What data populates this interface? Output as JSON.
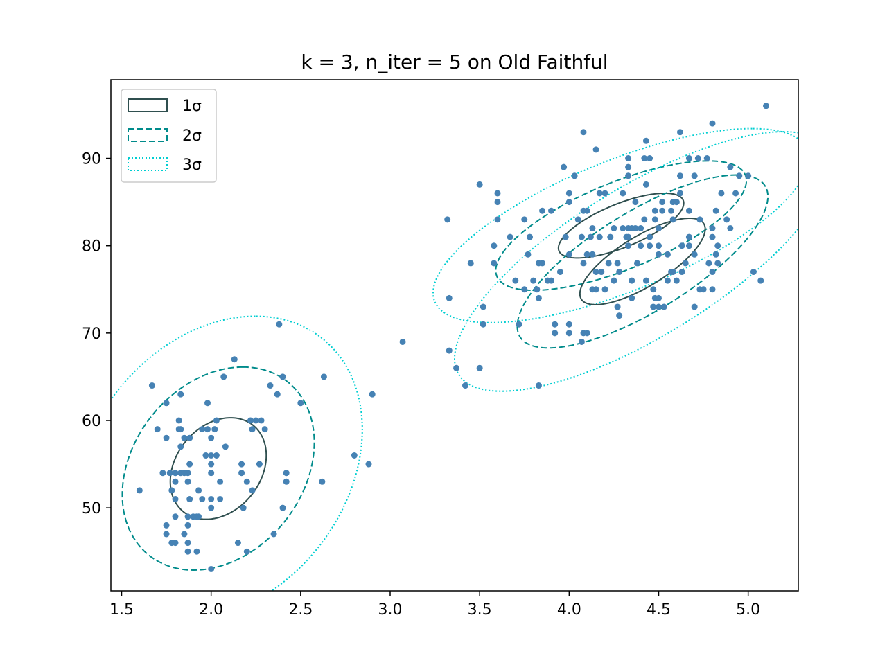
{
  "chart_data": {
    "type": "scatter",
    "title": "k = 3, n_iter = 5 on Old Faithful",
    "xlabel": "",
    "ylabel": "",
    "xlim": [
      1.44,
      5.28
    ],
    "ylim": [
      40.5,
      99
    ],
    "grid": false,
    "legend_position": "top-left",
    "x_ticks": [
      "1.5",
      "2.0",
      "2.5",
      "3.0",
      "3.5",
      "4.0",
      "4.5",
      "5.0"
    ],
    "y_ticks": [
      "50",
      "60",
      "70",
      "80",
      "90"
    ],
    "legend": [
      {
        "label": "1σ",
        "style": "solid",
        "color": "#2f4f4f"
      },
      {
        "label": "2σ",
        "style": "dashed",
        "color": "#008b8b"
      },
      {
        "label": "3σ",
        "style": "dotted",
        "color": "#00ced1"
      }
    ],
    "colors": {
      "points": "#4682b4",
      "sigma1": "#2f4f4f",
      "sigma2": "#008b8b",
      "sigma3": "#00ced1"
    },
    "components": [
      {
        "name": "",
        "mean": [
          2.04,
          54.5
        ],
        "cov": [
          [
            0.0719,
            0.4
          ],
          [
            0.4,
            33.76
          ]
        ]
      },
      {
        "name": "",
        "mean": [
          4.29,
          82.3
        ],
        "cov": [
          [
            0.1225,
            0.9
          ],
          [
            0.9,
            13.7
          ]
        ]
      },
      {
        "name": "",
        "mean": [
          4.41,
          78.2
        ],
        "cov": [
          [
            0.1225,
            1.3
          ],
          [
            1.3,
            24.5
          ]
        ]
      }
    ],
    "points": [
      [
        1.6,
        52
      ],
      [
        1.67,
        64
      ],
      [
        1.7,
        59
      ],
      [
        1.73,
        54
      ],
      [
        1.75,
        62
      ],
      [
        1.75,
        58
      ],
      [
        1.75,
        47
      ],
      [
        1.75,
        48
      ],
      [
        1.77,
        54
      ],
      [
        1.78,
        46
      ],
      [
        1.78,
        52
      ],
      [
        1.8,
        54
      ],
      [
        1.8,
        51
      ],
      [
        1.8,
        49
      ],
      [
        1.8,
        46
      ],
      [
        1.8,
        53
      ],
      [
        1.82,
        60
      ],
      [
        1.82,
        59
      ],
      [
        1.83,
        54
      ],
      [
        1.83,
        57
      ],
      [
        1.83,
        63
      ],
      [
        1.83,
        59
      ],
      [
        1.85,
        54
      ],
      [
        1.85,
        47
      ],
      [
        1.85,
        58
      ],
      [
        1.87,
        53
      ],
      [
        1.87,
        54
      ],
      [
        1.87,
        49
      ],
      [
        1.87,
        48
      ],
      [
        1.87,
        46
      ],
      [
        1.87,
        45
      ],
      [
        1.88,
        58
      ],
      [
        1.88,
        55
      ],
      [
        1.88,
        51
      ],
      [
        1.9,
        49
      ],
      [
        1.92,
        49
      ],
      [
        1.92,
        45
      ],
      [
        1.93,
        49
      ],
      [
        1.93,
        52
      ],
      [
        1.95,
        51
      ],
      [
        1.95,
        59
      ],
      [
        1.97,
        56
      ],
      [
        1.98,
        62
      ],
      [
        1.98,
        59
      ],
      [
        2.0,
        56
      ],
      [
        2.0,
        54
      ],
      [
        2.0,
        55
      ],
      [
        2.0,
        50
      ],
      [
        2.0,
        43
      ],
      [
        2.0,
        58
      ],
      [
        2.0,
        51
      ],
      [
        2.02,
        59
      ],
      [
        2.03,
        56
      ],
      [
        2.03,
        60
      ],
      [
        2.05,
        53
      ],
      [
        2.05,
        51
      ],
      [
        2.07,
        65
      ],
      [
        2.08,
        57
      ],
      [
        2.13,
        67
      ],
      [
        2.15,
        46
      ],
      [
        2.17,
        55
      ],
      [
        2.17,
        54
      ],
      [
        2.18,
        50
      ],
      [
        2.2,
        53
      ],
      [
        2.2,
        45
      ],
      [
        2.22,
        60
      ],
      [
        2.23,
        52
      ],
      [
        2.23,
        59
      ],
      [
        2.25,
        60
      ],
      [
        2.27,
        55
      ],
      [
        2.28,
        60
      ],
      [
        2.3,
        59
      ],
      [
        2.33,
        64
      ],
      [
        2.35,
        47
      ],
      [
        2.37,
        63
      ],
      [
        2.38,
        71
      ],
      [
        2.4,
        65
      ],
      [
        2.4,
        50
      ],
      [
        2.42,
        54
      ],
      [
        2.42,
        53
      ],
      [
        2.5,
        62
      ],
      [
        2.62,
        53
      ],
      [
        2.63,
        65
      ],
      [
        2.8,
        56
      ],
      [
        2.88,
        55
      ],
      [
        2.9,
        63
      ],
      [
        3.07,
        69
      ],
      [
        3.32,
        83
      ],
      [
        3.33,
        74
      ],
      [
        3.33,
        68
      ],
      [
        3.37,
        66
      ],
      [
        3.42,
        64
      ],
      [
        3.45,
        78
      ],
      [
        3.5,
        87
      ],
      [
        3.5,
        66
      ],
      [
        3.52,
        73
      ],
      [
        3.52,
        71
      ],
      [
        3.58,
        80
      ],
      [
        3.58,
        78
      ],
      [
        3.6,
        85
      ],
      [
        3.6,
        83
      ],
      [
        3.6,
        86
      ],
      [
        3.67,
        81
      ],
      [
        3.7,
        76
      ],
      [
        3.72,
        71
      ],
      [
        3.75,
        75
      ],
      [
        3.75,
        83
      ],
      [
        3.77,
        79
      ],
      [
        3.78,
        81
      ],
      [
        3.8,
        76
      ],
      [
        3.82,
        75
      ],
      [
        3.83,
        74
      ],
      [
        3.83,
        64
      ],
      [
        3.83,
        78
      ],
      [
        3.85,
        84
      ],
      [
        3.85,
        78
      ],
      [
        3.88,
        76
      ],
      [
        3.9,
        84
      ],
      [
        3.9,
        76
      ],
      [
        3.92,
        71
      ],
      [
        3.92,
        70
      ],
      [
        3.95,
        77
      ],
      [
        3.97,
        89
      ],
      [
        3.98,
        81
      ],
      [
        4.0,
        85
      ],
      [
        4.0,
        86
      ],
      [
        4.0,
        71
      ],
      [
        4.0,
        70
      ],
      [
        4.0,
        79
      ],
      [
        4.03,
        88
      ],
      [
        4.05,
        83
      ],
      [
        4.07,
        69
      ],
      [
        4.07,
        81
      ],
      [
        4.08,
        93
      ],
      [
        4.08,
        70
      ],
      [
        4.08,
        84
      ],
      [
        4.08,
        78
      ],
      [
        4.1,
        79
      ],
      [
        4.1,
        84
      ],
      [
        4.1,
        70
      ],
      [
        4.12,
        81
      ],
      [
        4.13,
        79
      ],
      [
        4.13,
        82
      ],
      [
        4.13,
        75
      ],
      [
        4.15,
        91
      ],
      [
        4.15,
        77
      ],
      [
        4.15,
        75
      ],
      [
        4.17,
        81
      ],
      [
        4.17,
        86
      ],
      [
        4.18,
        77
      ],
      [
        4.2,
        75
      ],
      [
        4.2,
        86
      ],
      [
        4.22,
        78
      ],
      [
        4.23,
        81
      ],
      [
        4.25,
        82
      ],
      [
        4.25,
        76
      ],
      [
        4.27,
        73
      ],
      [
        4.27,
        78
      ],
      [
        4.28,
        72
      ],
      [
        4.28,
        77
      ],
      [
        4.3,
        82
      ],
      [
        4.3,
        86
      ],
      [
        4.32,
        81
      ],
      [
        4.33,
        81
      ],
      [
        4.33,
        80
      ],
      [
        4.33,
        88
      ],
      [
        4.33,
        90
      ],
      [
        4.33,
        89
      ],
      [
        4.33,
        82
      ],
      [
        4.35,
        82
      ],
      [
        4.35,
        76
      ],
      [
        4.35,
        74
      ],
      [
        4.37,
        85
      ],
      [
        4.37,
        82
      ],
      [
        4.38,
        78
      ],
      [
        4.4,
        82
      ],
      [
        4.4,
        80
      ],
      [
        4.42,
        83
      ],
      [
        4.42,
        90
      ],
      [
        4.43,
        87
      ],
      [
        4.43,
        92
      ],
      [
        4.43,
        76
      ],
      [
        4.45,
        81
      ],
      [
        4.45,
        80
      ],
      [
        4.45,
        90
      ],
      [
        4.47,
        73
      ],
      [
        4.47,
        75
      ],
      [
        4.48,
        83
      ],
      [
        4.48,
        74
      ],
      [
        4.48,
        84
      ],
      [
        4.5,
        80
      ],
      [
        4.5,
        82
      ],
      [
        4.5,
        79
      ],
      [
        4.5,
        74
      ],
      [
        4.5,
        73
      ],
      [
        4.52,
        85
      ],
      [
        4.52,
        84
      ],
      [
        4.53,
        73
      ],
      [
        4.55,
        79
      ],
      [
        4.55,
        76
      ],
      [
        4.57,
        84
      ],
      [
        4.57,
        77
      ],
      [
        4.58,
        85
      ],
      [
        4.58,
        77
      ],
      [
        4.58,
        83
      ],
      [
        4.6,
        85
      ],
      [
        4.6,
        85
      ],
      [
        4.6,
        76
      ],
      [
        4.62,
        93
      ],
      [
        4.62,
        88
      ],
      [
        4.62,
        86
      ],
      [
        4.63,
        80
      ],
      [
        4.63,
        77
      ],
      [
        4.65,
        78
      ],
      [
        4.67,
        90
      ],
      [
        4.67,
        81
      ],
      [
        4.67,
        84
      ],
      [
        4.67,
        80
      ],
      [
        4.7,
        88
      ],
      [
        4.7,
        73
      ],
      [
        4.7,
        79
      ],
      [
        4.72,
        90
      ],
      [
        4.73,
        83
      ],
      [
        4.73,
        75
      ],
      [
        4.75,
        75
      ],
      [
        4.77,
        90
      ],
      [
        4.78,
        78
      ],
      [
        4.8,
        94
      ],
      [
        4.8,
        82
      ],
      [
        4.8,
        75
      ],
      [
        4.8,
        81
      ],
      [
        4.8,
        77
      ],
      [
        4.82,
        79
      ],
      [
        4.82,
        84
      ],
      [
        4.83,
        78
      ],
      [
        4.83,
        80
      ],
      [
        4.85,
        86
      ],
      [
        4.88,
        83
      ],
      [
        4.9,
        89
      ],
      [
        4.9,
        82
      ],
      [
        4.93,
        86
      ],
      [
        4.95,
        88
      ],
      [
        5.0,
        88
      ],
      [
        5.03,
        77
      ],
      [
        5.07,
        76
      ],
      [
        5.1,
        96
      ]
    ]
  }
}
